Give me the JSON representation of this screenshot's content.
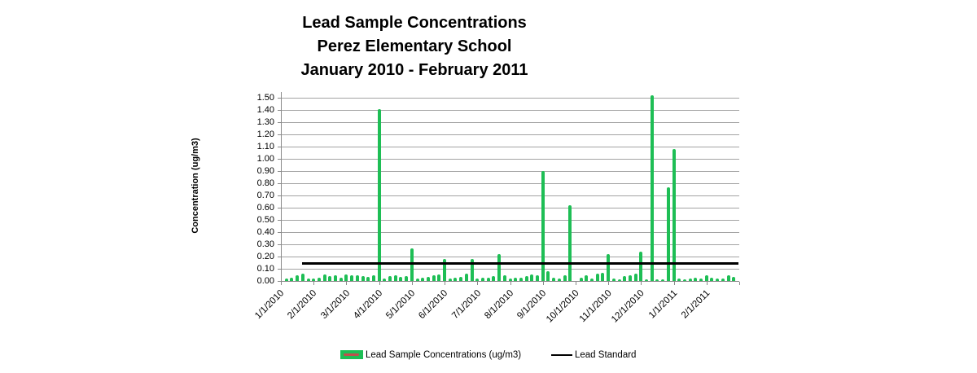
{
  "title": {
    "line1": "Lead Sample Concentrations",
    "line2": "Perez Elementary School",
    "line3": "January 2010 - February 2011"
  },
  "legend": {
    "samples_label": "Lead Sample  Concentrations (ug/m3)",
    "standard_label": "Lead Standard",
    "samples_swatch_color": "#1ebe55",
    "samples_swatch_inner_color": "#c0504d",
    "standard_line_color": "#000000"
  },
  "colors": {
    "bar": "#1ebe55",
    "gridline": "#a3a3a3",
    "axis": "#898989",
    "standard_line": "#000000",
    "text": "#000000",
    "background": "#ffffff"
  },
  "chart_data": {
    "type": "bar",
    "title": "Lead Sample Concentrations — Perez Elementary School — January 2010 - February 2011",
    "xlabel": "",
    "ylabel": "Concentration (ug/m3)",
    "ylim": [
      0,
      1.55
    ],
    "ytick_step": 0.1,
    "ytick_labels": [
      "0.00",
      "0.10",
      "0.20",
      "0.30",
      "0.40",
      "0.50",
      "0.60",
      "0.70",
      "0.80",
      "0.90",
      "1.00",
      "1.10",
      "1.20",
      "1.30",
      "1.40",
      "1.50"
    ],
    "grid": true,
    "legend_position": "bottom",
    "categories": [
      "1/1/2010",
      "2/1/2010",
      "3/1/2010",
      "4/1/2010",
      "5/1/2010",
      "6/1/2010",
      "7/1/2010",
      "8/1/2010",
      "9/1/2010",
      "10/1/2010",
      "11/1/2010",
      "12/1/2010",
      "1/1/2011",
      "2/1/2011"
    ],
    "samples_per_month": 6,
    "series": [
      {
        "name": "Lead Sample  Concentrations (ug/m3)",
        "type": "bar",
        "values": [
          0.02,
          0.03,
          0.05,
          0.06,
          0.02,
          0.02,
          0.03,
          0.055,
          0.04,
          0.05,
          0.03,
          0.055,
          0.045,
          0.05,
          0.04,
          0.035,
          0.045,
          1.41,
          0.02,
          0.04,
          0.045,
          0.035,
          0.04,
          0.27,
          0.02,
          0.03,
          0.035,
          0.045,
          0.055,
          0.18,
          0.02,
          0.03,
          0.035,
          0.06,
          0.18,
          0.02,
          0.025,
          0.025,
          0.04,
          0.22,
          0.045,
          0.02,
          0.025,
          0.03,
          0.04,
          0.055,
          0.05,
          0.9,
          0.08,
          0.03,
          0.022,
          0.05,
          0.62,
          0,
          0.025,
          0.045,
          0.022,
          0.06,
          0.065,
          0.22,
          0.022,
          0.012,
          0.04,
          0.05,
          0.06,
          0.24,
          0.012,
          1.52,
          0.015,
          0.015,
          0.77,
          1.08,
          0.022,
          0.015,
          0.022,
          0.027,
          0.022,
          0.044,
          0.027,
          0.018,
          0.022,
          0.045,
          0.033
        ]
      },
      {
        "name": "Lead Standard",
        "type": "line",
        "value": 0.15
      }
    ]
  }
}
